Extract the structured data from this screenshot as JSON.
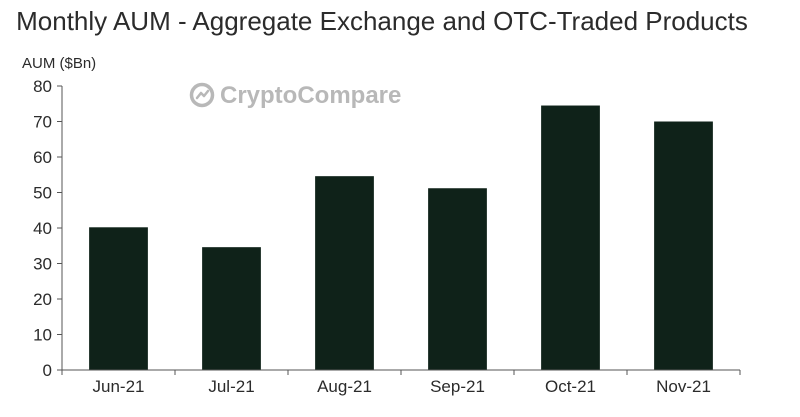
{
  "chart_data": {
    "type": "bar",
    "title": "Monthly AUM - Aggregate Exchange and OTC-Traded Products",
    "ylabel": "AUM ($Bn)",
    "xlabel": "",
    "categories": [
      "Jun-21",
      "Jul-21",
      "Aug-21",
      "Sep-21",
      "Oct-21",
      "Nov-21"
    ],
    "values": [
      40.2,
      34.6,
      54.6,
      51.2,
      74.5,
      70.0
    ],
    "ylim": [
      0,
      80
    ],
    "yticks": [
      0,
      10,
      20,
      30,
      40,
      50,
      60,
      70,
      80
    ],
    "grid": false,
    "legend": "none",
    "bar_color": "#0f2219"
  },
  "watermark": {
    "text": "CryptoCompare",
    "icon": "cryptocompare-logo-icon",
    "color": "#b8b8b8"
  },
  "colors": {
    "axis": "#555555",
    "text": "#2b2b2b"
  }
}
